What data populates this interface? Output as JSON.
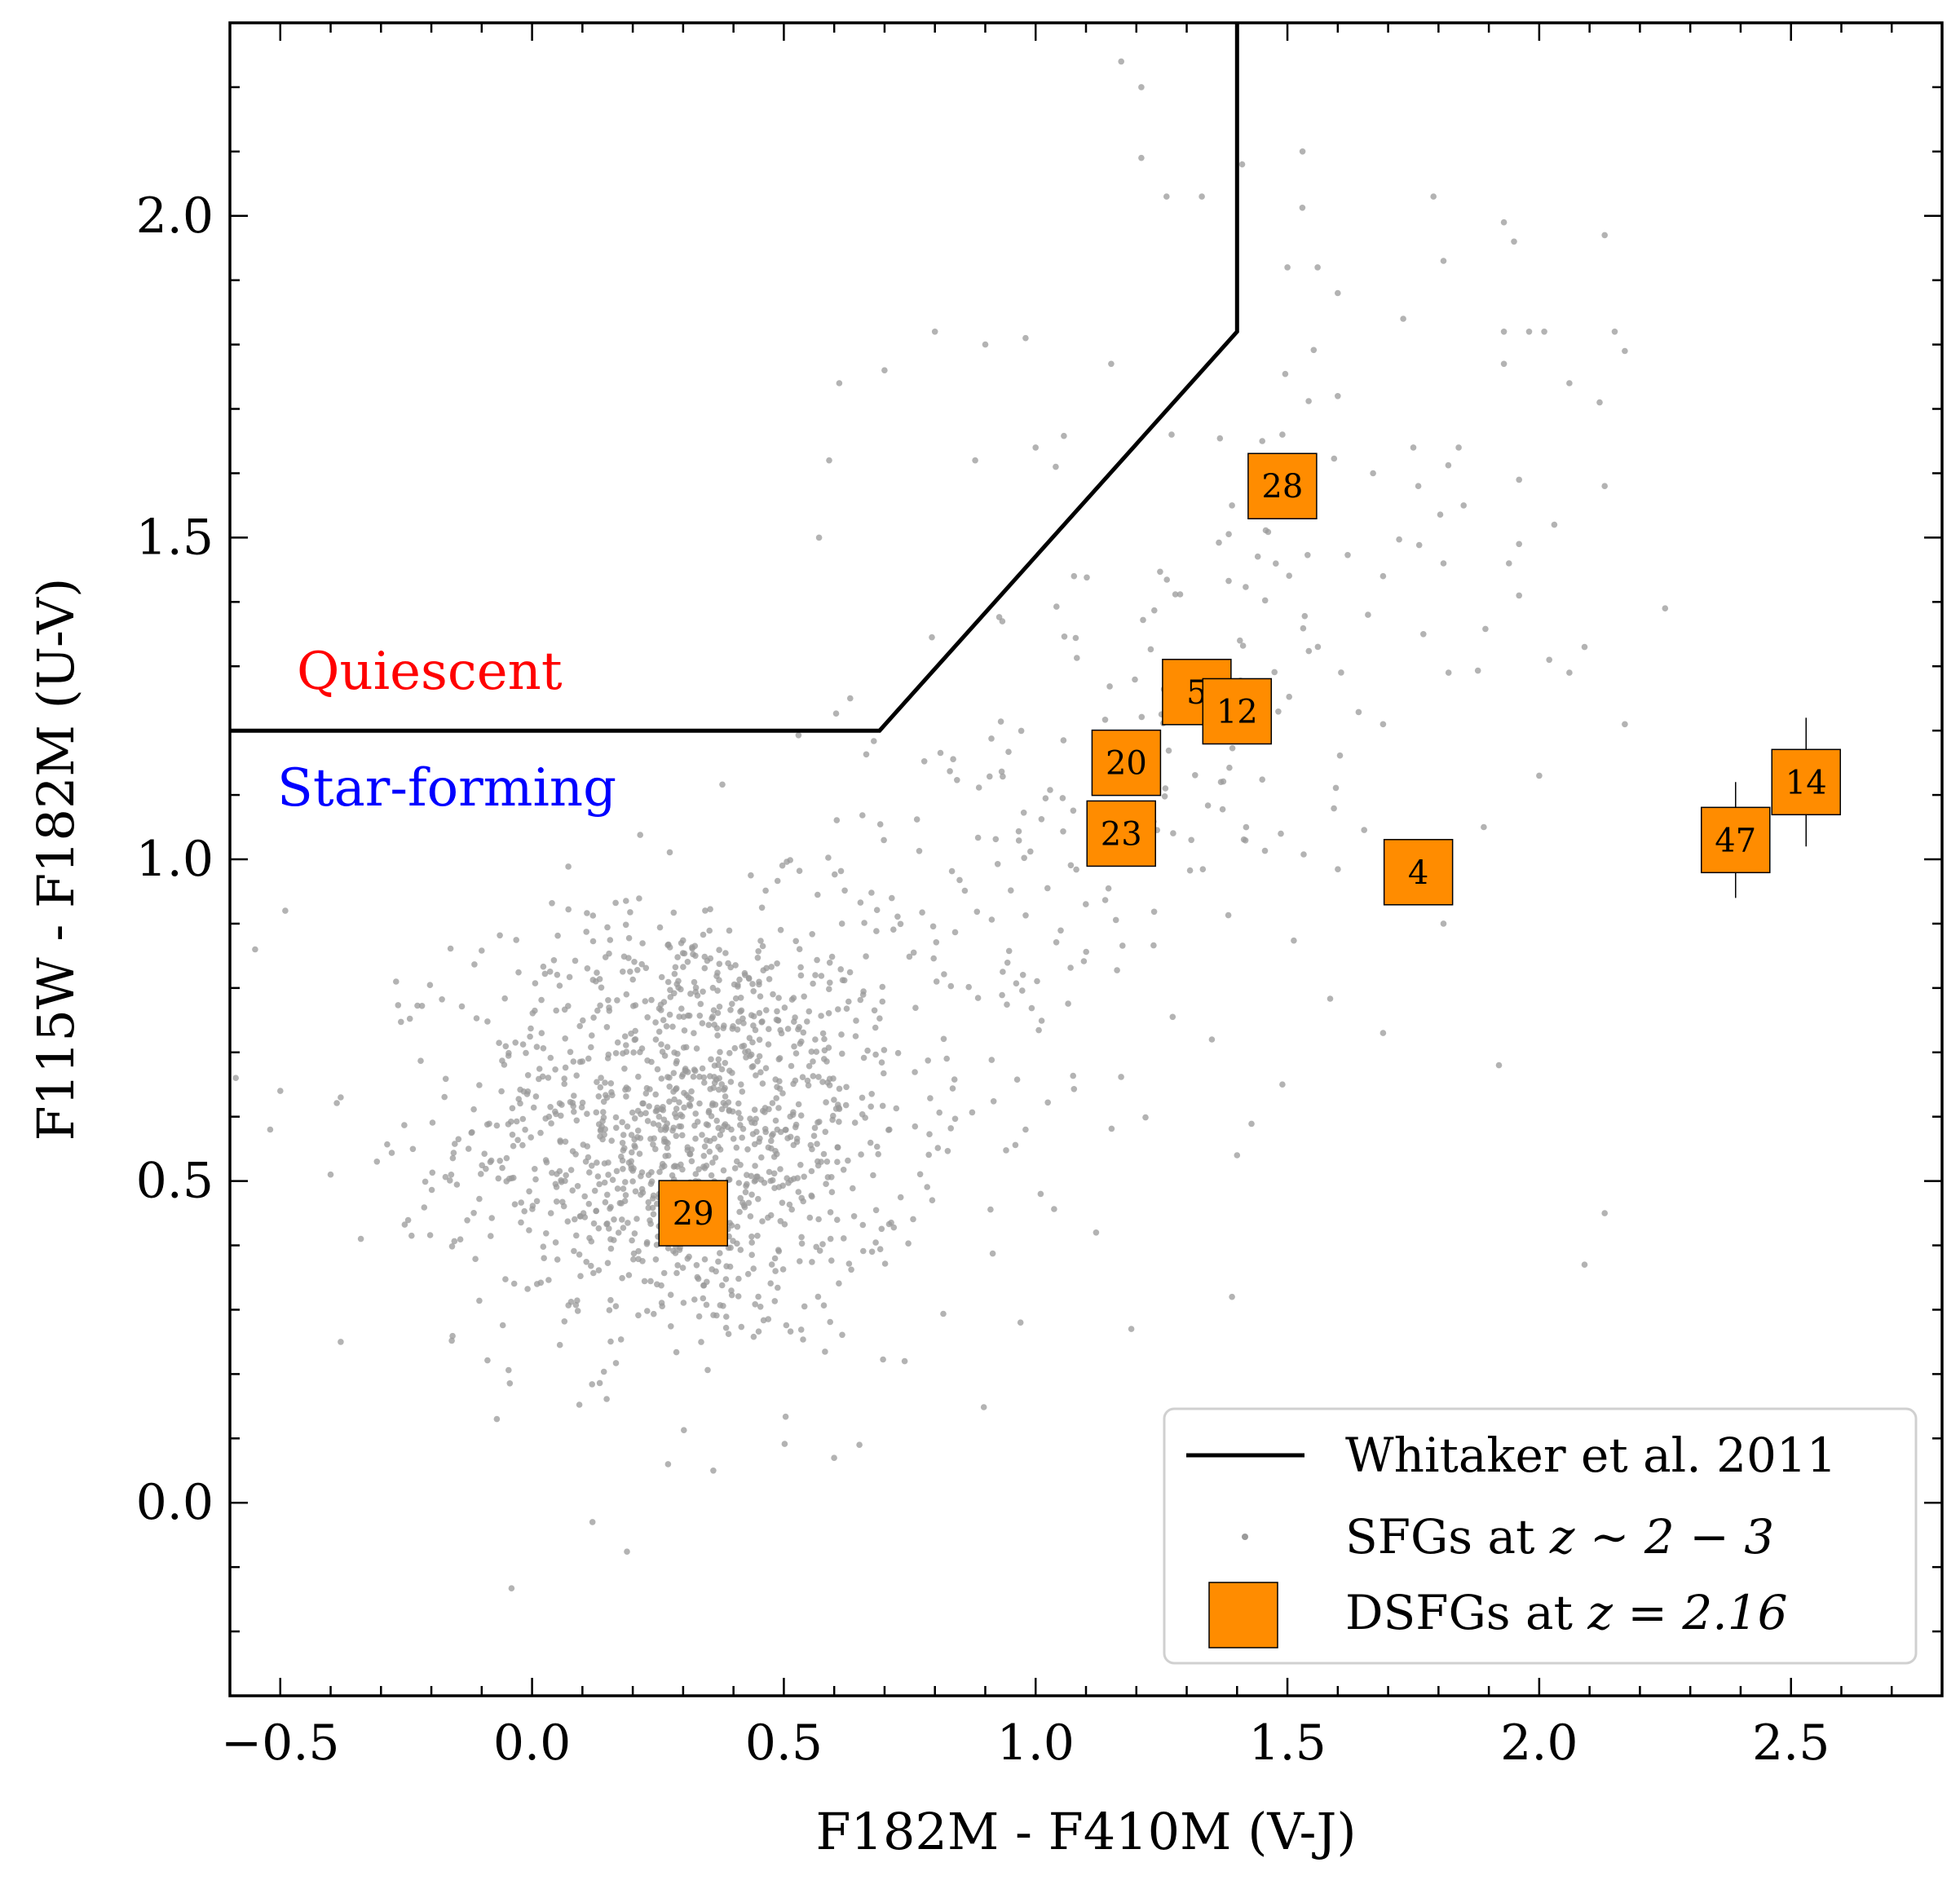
{
  "chart_data": {
    "type": "scatter",
    "xlabel": "F182M - F410M (V-J)",
    "ylabel": "F115W - F182M (U-V)",
    "xlim": [
      -0.6,
      2.8
    ],
    "ylim": [
      -0.3,
      2.3
    ],
    "xticks": [
      -0.5,
      0.0,
      0.5,
      1.0,
      1.5,
      2.0,
      2.5
    ],
    "xtick_labels": [
      "−0.5",
      "0.0",
      "0.5",
      "1.0",
      "1.5",
      "2.0",
      "2.5"
    ],
    "yticks": [
      0.0,
      0.5,
      1.0,
      1.5,
      2.0
    ],
    "ytick_labels": [
      "0.0",
      "0.5",
      "1.0",
      "1.5",
      "2.0"
    ],
    "grid": false,
    "legend_position": "bottom-right",
    "colors": {
      "sfg": "#9a9a9a",
      "dsfg": "#ff8c00",
      "boundary": "#000000",
      "quiescent_label": "#ff0000",
      "starforming_label": "#0000ff"
    },
    "regions": {
      "quiescent": "Quiescent",
      "star_forming": "Star-forming"
    },
    "boundary": {
      "name": "Whitaker et al. 2011",
      "points": [
        [
          -0.6,
          1.2
        ],
        [
          0.69,
          1.2
        ],
        [
          1.4,
          1.82
        ],
        [
          1.4,
          2.3
        ]
      ]
    },
    "sfg_series": {
      "name_prefix": "SFGs at ",
      "name_math": "z ∼ 2 − 3",
      "n_points": 1500,
      "core_center": [
        0.3,
        0.58
      ],
      "core_spread": [
        0.22,
        0.17
      ],
      "tail_center": [
        1.05,
        1.0
      ],
      "tail_spread": [
        0.35,
        0.32
      ],
      "outliers": [
        [
          1.17,
          2.24
        ],
        [
          1.21,
          2.2
        ],
        [
          1.53,
          2.1
        ],
        [
          1.21,
          2.09
        ],
        [
          1.41,
          2.08
        ],
        [
          1.33,
          2.03
        ],
        [
          1.26,
          2.03
        ],
        [
          1.79,
          2.03
        ],
        [
          2.13,
          1.97
        ],
        [
          1.95,
          1.96
        ],
        [
          1.93,
          1.99
        ],
        [
          1.81,
          1.93
        ],
        [
          1.6,
          1.88
        ],
        [
          1.56,
          1.92
        ],
        [
          1.5,
          1.92
        ],
        [
          1.98,
          1.82
        ],
        [
          2.15,
          1.82
        ],
        [
          1.73,
          1.84
        ],
        [
          0.8,
          1.82
        ],
        [
          0.9,
          1.8
        ],
        [
          2.17,
          1.79
        ],
        [
          1.93,
          1.77
        ],
        [
          0.7,
          1.76
        ],
        [
          0.98,
          1.81
        ],
        [
          1.15,
          1.77
        ],
        [
          1.6,
          1.72
        ],
        [
          0.61,
          1.74
        ],
        [
          1.93,
          1.82
        ],
        [
          2.01,
          1.82
        ],
        [
          2.06,
          1.74
        ],
        [
          2.12,
          1.71
        ],
        [
          1.67,
          1.6
        ],
        [
          1.75,
          1.64
        ],
        [
          1.84,
          1.64
        ],
        [
          1.27,
          1.66
        ],
        [
          1.0,
          1.64
        ],
        [
          0.88,
          1.62
        ],
        [
          1.45,
          1.65
        ],
        [
          1.49,
          1.66
        ],
        [
          1.04,
          1.61
        ],
        [
          0.59,
          1.62
        ],
        [
          1.85,
          1.55
        ],
        [
          1.96,
          1.59
        ],
        [
          2.13,
          1.58
        ],
        [
          1.39,
          1.55
        ],
        [
          2.03,
          1.52
        ],
        [
          1.76,
          1.58
        ],
        [
          0.57,
          1.5
        ],
        [
          1.96,
          1.49
        ],
        [
          1.94,
          1.46
        ],
        [
          1.81,
          1.46
        ],
        [
          1.69,
          1.44
        ],
        [
          2.25,
          1.39
        ],
        [
          1.66,
          1.38
        ],
        [
          2.09,
          1.33
        ],
        [
          2.02,
          1.31
        ],
        [
          2.06,
          1.29
        ],
        [
          1.96,
          1.41
        ],
        [
          1.77,
          1.35
        ],
        [
          1.82,
          1.29
        ],
        [
          1.69,
          1.21
        ],
        [
          2.17,
          1.21
        ],
        [
          2.0,
          1.13
        ],
        [
          1.89,
          1.05
        ],
        [
          1.81,
          0.9
        ],
        [
          1.76,
          1.02
        ],
        [
          1.79,
          1.0
        ],
        [
          1.69,
          0.73
        ],
        [
          1.92,
          0.68
        ],
        [
          2.13,
          0.45
        ],
        [
          2.09,
          0.37
        ],
        [
          1.49,
          0.65
        ],
        [
          1.39,
          0.32
        ],
        [
          1.4,
          0.54
        ],
        [
          0.97,
          0.28
        ],
        [
          1.19,
          0.27
        ],
        [
          -0.55,
          0.86
        ],
        [
          -0.49,
          0.92
        ],
        [
          -0.38,
          0.63
        ],
        [
          -0.4,
          0.51
        ],
        [
          -0.52,
          0.58
        ],
        [
          -0.5,
          0.64
        ],
        [
          -0.38,
          0.25
        ],
        [
          -0.34,
          0.41
        ],
        [
          -0.27,
          0.81
        ],
        [
          -0.07,
          0.13
        ],
        [
          0.12,
          -0.03
        ],
        [
          0.27,
          0.06
        ],
        [
          0.36,
          0.05
        ],
        [
          0.65,
          0.09
        ],
        [
          0.74,
          0.22
        ],
        [
          1.12,
          0.42
        ],
        [
          1.01,
          0.48
        ],
        [
          0.98,
          0.58
        ],
        [
          1.35,
          0.72
        ]
      ]
    },
    "dsfg_series": {
      "name_prefix": "DSFGs at ",
      "name_math": "z = 2.16",
      "points": [
        {
          "label": "28",
          "x": 1.49,
          "y": 1.58
        },
        {
          "label": "5",
          "x": 1.32,
          "y": 1.26
        },
        {
          "label": "12",
          "x": 1.4,
          "y": 1.23
        },
        {
          "label": "20",
          "x": 1.18,
          "y": 1.15
        },
        {
          "label": "23",
          "x": 1.17,
          "y": 1.04
        },
        {
          "label": "4",
          "x": 1.76,
          "y": 0.98
        },
        {
          "label": "14",
          "x": 2.53,
          "y": 1.12,
          "yerr": 0.1
        },
        {
          "label": "47",
          "x": 2.39,
          "y": 1.03,
          "yerr": 0.09
        },
        {
          "label": "29",
          "x": 0.32,
          "y": 0.45
        }
      ]
    }
  }
}
